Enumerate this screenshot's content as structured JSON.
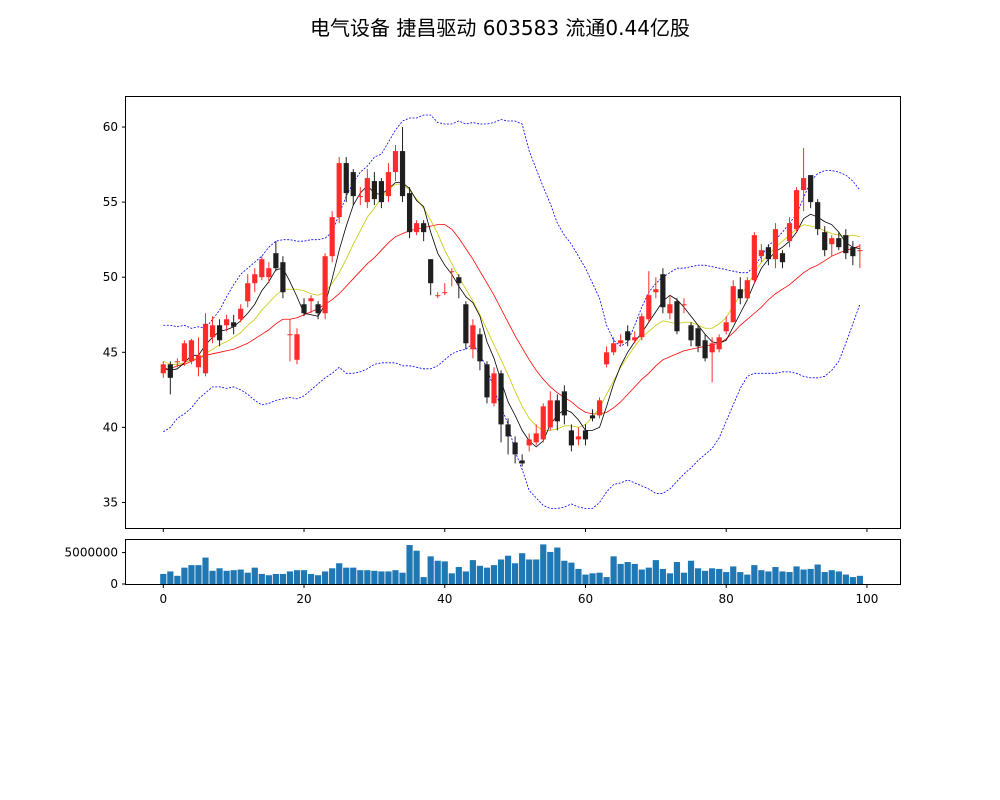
{
  "chart_data": {
    "type": "candlestick",
    "title": "电气设备 捷昌驱动 603583 流通0.44亿股",
    "price_panel": {
      "ylim": [
        33.3,
        62
      ],
      "yticks": [
        35,
        40,
        45,
        50,
        55,
        60
      ]
    },
    "volume_panel": {
      "ylim": [
        0,
        7000000
      ],
      "yticks": [
        0,
        5000000
      ],
      "ytick_labels": [
        "0",
        "5000000"
      ]
    },
    "xlim": [
      -5.3,
      104.7
    ],
    "xticks": [
      0,
      20,
      40,
      60,
      80,
      100
    ],
    "colors": {
      "up": "#ff2b2b",
      "down": "#1f1f1f",
      "ma_short": "#000000",
      "ma_mid": "#c8c800",
      "ma_long": "#ff0000",
      "boll": "#0000ff",
      "volume": "#1f77b4"
    },
    "candles": {
      "open": [
        43.6,
        44.2,
        44.4,
        44.4,
        44.4,
        44.0,
        43.6,
        46.0,
        46.8,
        46.8,
        47.0,
        47.2,
        48.4,
        49.6,
        50.0,
        50.0,
        51.6,
        51.0,
        46.2,
        44.5,
        48.2,
        48.4,
        48.2,
        47.6,
        51.4,
        54.0,
        57.6,
        57.0,
        55.4,
        55.0,
        56.4,
        56.4,
        55.4,
        57.0,
        58.4,
        55.6,
        53.0,
        53.6,
        51.2,
        48.8,
        49.0,
        50.4,
        50.0,
        48.2,
        45.2,
        46.2,
        44.2,
        41.6,
        43.6,
        40.2,
        39.0,
        37.8,
        38.8,
        39.0,
        39.2,
        40.0,
        41.8,
        42.4,
        39.8,
        39.2,
        39.8,
        40.8,
        40.8,
        44.2,
        45.0,
        45.6,
        46.4,
        45.8,
        46.0,
        47.2,
        49.0,
        50.2,
        47.6,
        48.4,
        48.2,
        46.8,
        46.6,
        45.8,
        45.0,
        45.2,
        46.4,
        47.0,
        49.2,
        48.6,
        49.8,
        51.4,
        52.0,
        51.2,
        51.6,
        52.4,
        53.2,
        55.8,
        56.8,
        55.0,
        53.0,
        52.2,
        52.6,
        52.8,
        52.0,
        51.8
      ],
      "close": [
        44.2,
        43.3,
        44.4,
        45.6,
        45.8,
        44.8,
        46.9,
        46.8,
        45.8,
        47.2,
        46.7,
        47.9,
        49.6,
        50.2,
        51.2,
        50.6,
        50.6,
        49.0,
        46.2,
        46.2,
        47.6,
        48.6,
        47.6,
        51.4,
        54.0,
        57.6,
        55.6,
        55.4,
        55.4,
        56.6,
        55.2,
        55.0,
        57.0,
        58.4,
        55.4,
        53.0,
        53.6,
        53.0,
        49.6,
        48.8,
        49.0,
        50.4,
        49.6,
        45.6,
        46.8,
        44.4,
        42.0,
        43.6,
        40.2,
        39.4,
        38.2,
        37.6,
        39.2,
        39.6,
        41.4,
        41.8,
        40.4,
        40.8,
        38.8,
        39.4,
        39.2,
        40.6,
        41.8,
        45.0,
        45.6,
        45.8,
        45.8,
        46.0,
        47.4,
        48.8,
        49.2,
        48.0,
        48.2,
        46.4,
        48.2,
        45.8,
        45.4,
        44.6,
        45.6,
        46.0,
        47.0,
        49.4,
        48.6,
        49.8,
        52.8,
        51.8,
        51.2,
        53.2,
        51.0,
        53.6,
        55.8,
        56.6,
        55.0,
        53.2,
        51.8,
        52.6,
        52.0,
        51.6,
        51.4,
        51.8
      ],
      "high": [
        44.4,
        44.4,
        44.6,
        45.8,
        45.9,
        46.0,
        47.6,
        47.4,
        47.2,
        47.5,
        47.5,
        48.2,
        50.2,
        50.6,
        51.4,
        51.0,
        52.4,
        51.4,
        47.2,
        46.6,
        48.6,
        48.8,
        48.4,
        51.6,
        54.4,
        58.0,
        58.0,
        57.2,
        56.0,
        57.2,
        57.0,
        56.6,
        57.6,
        58.8,
        60.0,
        56.0,
        53.8,
        53.8,
        51.2,
        49.0,
        49.6,
        50.6,
        50.2,
        48.4,
        47.2,
        46.6,
        44.4,
        44.0,
        43.8,
        40.6,
        39.4,
        38.2,
        39.6,
        40.2,
        41.6,
        42.4,
        42.2,
        42.8,
        40.2,
        40.0,
        40.2,
        41.2,
        42.0,
        45.4,
        46.0,
        46.2,
        46.8,
        46.4,
        47.6,
        50.4,
        50.0,
        50.6,
        48.8,
        48.6,
        48.6,
        47.0,
        46.8,
        46.2,
        46.0,
        46.2,
        47.4,
        49.8,
        50.0,
        50.0,
        53.0,
        52.2,
        52.2,
        53.6,
        51.8,
        54.0,
        56.0,
        58.6,
        56.6,
        55.2,
        53.4,
        52.8,
        53.0,
        53.2,
        52.4,
        52.2
      ],
      "low": [
        43.3,
        42.2,
        44.0,
        44.1,
        44.2,
        43.4,
        43.4,
        45.6,
        45.4,
        46.4,
        46.2,
        47.0,
        48.0,
        49.0,
        49.8,
        49.6,
        50.4,
        48.6,
        44.4,
        44.2,
        47.4,
        47.6,
        47.2,
        47.2,
        51.0,
        53.6,
        55.0,
        54.8,
        54.8,
        54.6,
        54.8,
        54.6,
        55.0,
        56.4,
        55.0,
        52.6,
        52.8,
        52.4,
        48.8,
        48.6,
        48.8,
        49.4,
        48.6,
        45.2,
        44.6,
        43.8,
        41.6,
        41.4,
        39.0,
        38.2,
        37.6,
        37.4,
        38.4,
        38.8,
        39.0,
        39.8,
        39.8,
        40.2,
        38.4,
        38.8,
        38.8,
        40.4,
        40.6,
        44.0,
        44.8,
        45.4,
        45.4,
        45.6,
        45.8,
        47.0,
        48.6,
        47.6,
        47.2,
        46.2,
        47.6,
        45.4,
        45.0,
        44.4,
        43.0,
        45.0,
        46.2,
        47.0,
        48.2,
        48.4,
        49.6,
        51.0,
        50.8,
        50.6,
        50.6,
        52.0,
        53.0,
        54.4,
        54.6,
        52.8,
        51.4,
        51.4,
        51.8,
        51.2,
        50.8,
        50.6
      ]
    },
    "ma_short": [
      44.0,
      43.8,
      43.9,
      44.3,
      44.8,
      44.8,
      45.5,
      46.0,
      46.4,
      46.5,
      46.7,
      47.1,
      47.6,
      48.2,
      49.1,
      49.7,
      50.5,
      50.6,
      49.7,
      48.7,
      47.6,
      47.5,
      47.4,
      48.2,
      49.9,
      51.8,
      53.4,
      54.8,
      55.6,
      56.1,
      55.6,
      55.5,
      55.9,
      56.3,
      56.3,
      55.9,
      55.1,
      54.7,
      53.0,
      51.6,
      50.8,
      50.2,
      49.4,
      48.7,
      48.3,
      47.4,
      45.7,
      44.6,
      43.1,
      41.7,
      40.8,
      39.8,
      39.1,
      38.7,
      39.1,
      40.2,
      40.8,
      41.2,
      41.0,
      40.5,
      39.8,
      39.8,
      40.0,
      41.4,
      42.9,
      44.1,
      45.0,
      45.7,
      46.3,
      47.0,
      47.7,
      48.4,
      48.8,
      48.5,
      48.0,
      47.4,
      46.8,
      46.2,
      45.7,
      45.6,
      45.8,
      46.7,
      47.6,
      48.5,
      49.6,
      50.6,
      51.2,
      51.7,
      52.0,
      52.4,
      53.0,
      53.9,
      54.2,
      54.0,
      53.7,
      53.5,
      53.0,
      52.3,
      52.0,
      51.9
    ],
    "ma_mid": [
      44.4,
      44.2,
      44.2,
      44.3,
      44.5,
      44.6,
      44.9,
      45.2,
      45.5,
      45.7,
      46.0,
      46.3,
      46.8,
      47.2,
      47.8,
      48.3,
      48.8,
      49.2,
      49.2,
      49.2,
      49.1,
      48.9,
      48.8,
      49.0,
      49.6,
      50.3,
      51.2,
      52.2,
      53.1,
      54.0,
      54.6,
      55.3,
      55.8,
      56.2,
      56.2,
      55.8,
      55.2,
      54.6,
      53.8,
      52.9,
      51.8,
      50.9,
      50.0,
      49.2,
      48.4,
      47.5,
      46.5,
      45.5,
      44.5,
      43.5,
      42.4,
      41.4,
      40.6,
      40.1,
      39.8,
      39.8,
      39.9,
      40.1,
      40.1,
      40.0,
      40.2,
      40.7,
      41.3,
      42.2,
      43.1,
      44.0,
      44.7,
      45.4,
      46.0,
      46.4,
      46.8,
      47.1,
      47.0,
      46.9,
      47.0,
      47.0,
      46.8,
      46.6,
      46.6,
      46.9,
      47.3,
      48.1,
      48.8,
      49.4,
      50.3,
      51.0,
      51.5,
      52.0,
      52.4,
      52.8,
      53.2,
      53.5,
      53.4,
      53.3,
      53.1,
      52.9,
      52.8,
      52.7,
      52.8,
      52.7
    ],
    "ma_long": [
      43.8,
      43.9,
      44.1,
      44.2,
      44.4,
      44.6,
      44.8,
      44.9,
      45.0,
      45.1,
      45.2,
      45.4,
      45.6,
      45.9,
      46.2,
      46.5,
      46.9,
      47.2,
      47.2,
      47.3,
      47.5,
      47.7,
      47.9,
      48.2,
      48.5,
      48.9,
      49.4,
      49.9,
      50.4,
      50.9,
      51.3,
      51.8,
      52.3,
      52.7,
      52.9,
      53.1,
      53.2,
      53.3,
      53.4,
      53.5,
      53.5,
      53.2,
      52.6,
      51.9,
      51.2,
      50.4,
      49.6,
      48.8,
      47.9,
      47.0,
      46.1,
      45.3,
      44.5,
      43.8,
      43.2,
      42.7,
      42.3,
      42.0,
      41.7,
      41.3,
      41.0,
      40.9,
      40.9,
      41.0,
      41.3,
      41.7,
      42.2,
      42.7,
      43.2,
      43.6,
      44.1,
      44.5,
      44.7,
      44.9,
      45.1,
      45.2,
      45.3,
      45.4,
      45.5,
      45.6,
      45.9,
      46.3,
      46.8,
      47.2,
      47.6,
      48.0,
      48.5,
      48.9,
      49.2,
      49.5,
      49.9,
      50.3,
      50.6,
      50.8,
      51.1,
      51.4,
      51.6,
      51.8,
      51.9,
      52.1
    ],
    "boll_upper": [
      46.8,
      46.8,
      46.7,
      46.8,
      46.6,
      46.7,
      46.6,
      47.2,
      47.8,
      48.7,
      49.5,
      50.2,
      50.6,
      51.0,
      51.4,
      52.0,
      52.4,
      52.5,
      52.5,
      52.4,
      52.4,
      52.5,
      52.5,
      52.6,
      53.0,
      54.2,
      55.4,
      56.3,
      57.0,
      57.4,
      58.0,
      58.2,
      59.0,
      59.8,
      60.4,
      60.6,
      60.6,
      60.8,
      60.8,
      60.3,
      60.2,
      60.2,
      60.4,
      60.2,
      60.3,
      60.2,
      60.2,
      60.3,
      60.5,
      60.4,
      60.4,
      60.2,
      58.4,
      57.2,
      56.0,
      54.9,
      53.6,
      52.8,
      52.2,
      51.4,
      50.6,
      49.6,
      48.6,
      46.8,
      45.8,
      45.4,
      45.7,
      46.8,
      48.0,
      49.0,
      49.6,
      50.0,
      50.3,
      50.6,
      50.6,
      50.7,
      50.8,
      50.8,
      50.7,
      50.6,
      50.5,
      50.4,
      50.3,
      50.3,
      50.7,
      51.4,
      52.1,
      52.5,
      53.0,
      53.6,
      54.2,
      55.3,
      56.4,
      56.9,
      57.1,
      57.1,
      57.0,
      56.8,
      56.4,
      55.8
    ],
    "boll_lower": [
      39.7,
      40.0,
      40.6,
      40.9,
      41.3,
      41.9,
      42.3,
      42.7,
      42.7,
      42.6,
      42.7,
      42.5,
      42.2,
      41.8,
      41.5,
      41.6,
      41.8,
      41.9,
      42.0,
      41.9,
      42.1,
      42.5,
      42.9,
      43.3,
      43.6,
      44.0,
      43.6,
      43.6,
      43.7,
      43.9,
      44.2,
      44.3,
      44.3,
      44.3,
      44.1,
      44.1,
      44.0,
      43.9,
      43.9,
      44.1,
      44.5,
      44.9,
      45.1,
      45.2,
      45.6,
      44.8,
      44.0,
      42.5,
      41.4,
      40.2,
      38.4,
      37.2,
      35.8,
      35.3,
      34.8,
      34.6,
      34.6,
      34.7,
      34.9,
      34.7,
      34.6,
      34.6,
      35.0,
      35.7,
      36.2,
      36.3,
      36.5,
      36.3,
      36.1,
      35.9,
      35.6,
      35.6,
      35.9,
      36.4,
      36.9,
      37.3,
      37.8,
      38.2,
      38.6,
      39.3,
      40.4,
      41.5,
      42.6,
      43.4,
      43.6,
      43.6,
      43.6,
      43.6,
      43.7,
      43.7,
      43.6,
      43.4,
      43.3,
      43.3,
      43.4,
      43.8,
      44.4,
      45.6,
      46.9,
      48.2
    ],
    "volume": [
      1600000,
      2000000,
      1300000,
      2600000,
      3000000,
      3000000,
      4200000,
      2100000,
      2500000,
      2100000,
      2200000,
      2300000,
      1800000,
      2600000,
      1600000,
      1400000,
      1600000,
      1600000,
      2000000,
      2200000,
      2200000,
      1600000,
      1400000,
      2000000,
      2500000,
      3300000,
      2600000,
      2600000,
      2200000,
      2200000,
      2100000,
      2000000,
      2000000,
      2200000,
      1800000,
      6200000,
      5300000,
      1100000,
      4400000,
      3700000,
      3600000,
      1700000,
      2700000,
      2000000,
      3800000,
      2900000,
      2600000,
      3000000,
      3900000,
      4500000,
      3300000,
      4900000,
      3900000,
      3900000,
      6300000,
      5100000,
      5800000,
      3700000,
      3400000,
      2400000,
      1500000,
      1700000,
      1800000,
      1100000,
      4400000,
      3200000,
      3500000,
      3200000,
      2300000,
      2600000,
      3800000,
      2400000,
      1700000,
      3500000,
      1800000,
      3700000,
      2500000,
      2100000,
      2500000,
      2400000,
      1900000,
      2800000,
      1900000,
      1500000,
      3000000,
      2200000,
      2000000,
      2700000,
      2000000,
      1900000,
      2800000,
      2300000,
      2400000,
      3100000,
      1900000,
      2200000,
      2000000,
      1500000,
      1100000,
      1300000
    ]
  }
}
